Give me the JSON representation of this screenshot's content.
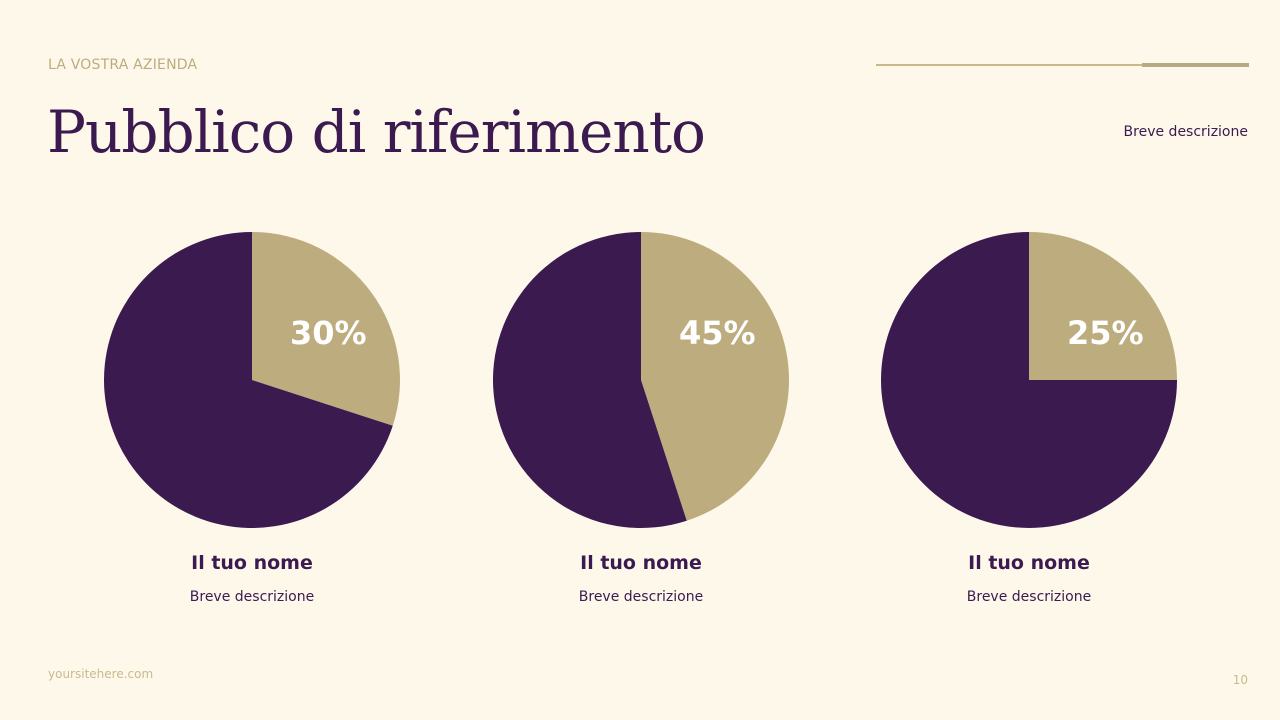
{
  "header": {
    "company": "LA VOSTRA AZIENDA",
    "title": "Pubblico di riferimento",
    "description": "Breve descrizione"
  },
  "colors": {
    "background": "#fef8ea",
    "primary": "#3b1a4f",
    "accent": "#bdac7e"
  },
  "chart_data": [
    {
      "type": "pie",
      "values": [
        30,
        70
      ],
      "label": "30%",
      "name": "Il tuo nome",
      "description": "Breve descrizione"
    },
    {
      "type": "pie",
      "values": [
        45,
        55
      ],
      "label": "45%",
      "name": "Il tuo nome",
      "description": "Breve descrizione"
    },
    {
      "type": "pie",
      "values": [
        25,
        75
      ],
      "label": "25%",
      "name": "Il tuo nome",
      "description": "Breve descrizione"
    }
  ],
  "footer": {
    "site": "yoursitehere.com",
    "page": "10"
  }
}
